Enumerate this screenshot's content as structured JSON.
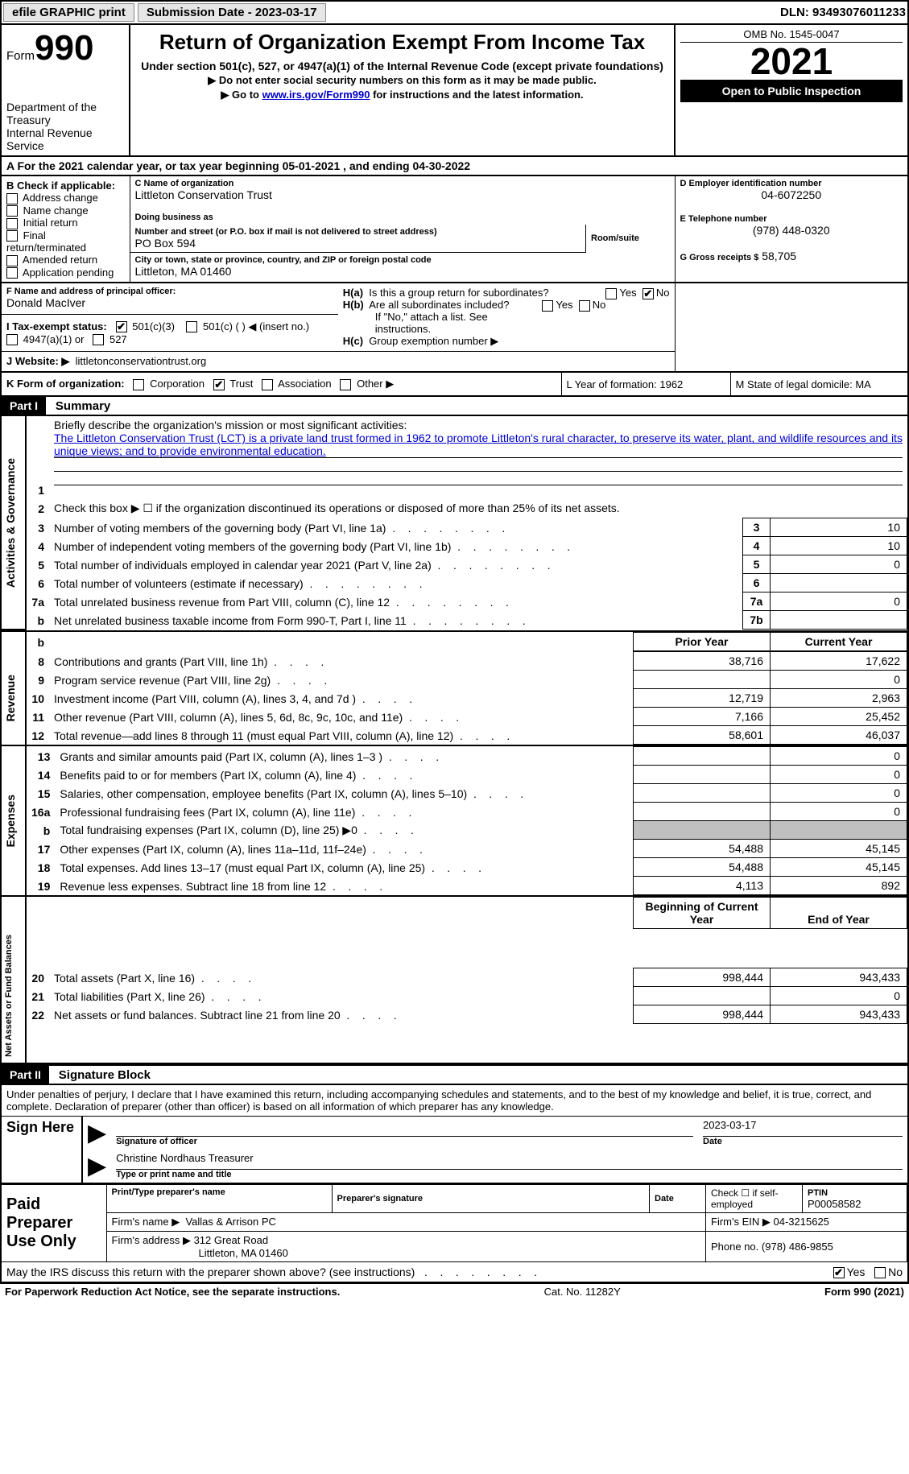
{
  "topbar": {
    "efile": "efile GRAPHIC print",
    "submission": "Submission Date - 2023-03-17",
    "dln": "DLN: 93493076011233"
  },
  "header": {
    "form_word": "Form",
    "form_num": "990",
    "dept": "Department of the Treasury",
    "irs": "Internal Revenue Service",
    "title": "Return of Organization Exempt From Income Tax",
    "sub1": "Under section 501(c), 527, or 4947(a)(1) of the Internal Revenue Code (except private foundations)",
    "sub2": "▶ Do not enter social security numbers on this form as it may be made public.",
    "sub3_a": "▶ Go to ",
    "sub3_link": "www.irs.gov/Form990",
    "sub3_b": " for instructions and the latest information.",
    "omb": "OMB No. 1545-0047",
    "year": "2021",
    "inspection": "Open to Public Inspection"
  },
  "periodA": "A For the 2021 calendar year, or tax year beginning 05-01-2021   , and ending 04-30-2022",
  "colB": {
    "title": "B Check if applicable:",
    "items": [
      "Address change",
      "Name change",
      "Initial return",
      "Final return/terminated",
      "Amended return",
      "Application pending"
    ]
  },
  "colC": {
    "name_lbl": "C Name of organization",
    "name": "Littleton Conservation Trust",
    "dba_lbl": "Doing business as",
    "dba": "",
    "addr_lbl": "Number and street (or P.O. box if mail is not delivered to street address)",
    "room_lbl": "Room/suite",
    "addr": "PO Box 594",
    "city_lbl": "City or town, state or province, country, and ZIP or foreign postal code",
    "city": "Littleton, MA  01460",
    "F_lbl": "F Name and address of principal officer:",
    "F_val": "Donald MacIver"
  },
  "colD": {
    "ein_lbl": "D Employer identification number",
    "ein": "04-6072250",
    "tel_lbl": "E Telephone number",
    "tel": "(978) 448-0320",
    "gross_lbl": "G Gross receipts $",
    "gross": "58,705"
  },
  "rowH": {
    "a": "H(a)  Is this a group return for subordinates?",
    "b": "H(b)  Are all subordinates included?",
    "b2": "If \"No,\" attach a list. See instructions.",
    "c": "H(c)  Group exemption number ▶",
    "yes": "Yes",
    "no": "No"
  },
  "rowI": {
    "label": "I   Tax-exempt status:",
    "opts": [
      "501(c)(3)",
      "501(c) (  ) ◀ (insert no.)",
      "4947(a)(1) or",
      "527"
    ]
  },
  "rowJ": {
    "label": "J   Website: ▶",
    "val": "littletonconservationtrust.org"
  },
  "rowK": {
    "label": "K Form of organization:",
    "opts": [
      "Corporation",
      "Trust",
      "Association",
      "Other ▶"
    ],
    "L": "L Year of formation: 1962",
    "M": "M State of legal domicile: MA"
  },
  "part1": {
    "num": "Part I",
    "title": "Summary"
  },
  "summary": {
    "l1a": "Briefly describe the organization's mission or most significant activities:",
    "l1b": "The Littleton Conservation Trust (LCT) is a private land trust formed in 1962 to promote Littleton's rural character, to preserve its water, plant, and wildlife resources and its unique views; and to provide environmental education.",
    "l2": "Check this box ▶ ☐  if the organization discontinued its operations or disposed of more than 25% of its net assets.",
    "rows_gov": [
      {
        "n": "3",
        "t": "Number of voting members of the governing body (Part VI, line 1a)",
        "b": "3",
        "v": "10"
      },
      {
        "n": "4",
        "t": "Number of independent voting members of the governing body (Part VI, line 1b)",
        "b": "4",
        "v": "10"
      },
      {
        "n": "5",
        "t": "Total number of individuals employed in calendar year 2021 (Part V, line 2a)",
        "b": "5",
        "v": "0"
      },
      {
        "n": "6",
        "t": "Total number of volunteers (estimate if necessary)",
        "b": "6",
        "v": ""
      },
      {
        "n": "7a",
        "t": "Total unrelated business revenue from Part VIII, column (C), line 12",
        "b": "7a",
        "v": "0"
      },
      {
        "n": "b",
        "t": "Net unrelated business taxable income from Form 990-T, Part I, line 11",
        "b": "7b",
        "v": ""
      }
    ],
    "hdr_prior": "Prior Year",
    "hdr_curr": "Current Year",
    "rev": [
      {
        "n": "8",
        "t": "Contributions and grants (Part VIII, line 1h)",
        "p": "38,716",
        "c": "17,622"
      },
      {
        "n": "9",
        "t": "Program service revenue (Part VIII, line 2g)",
        "p": "",
        "c": "0"
      },
      {
        "n": "10",
        "t": "Investment income (Part VIII, column (A), lines 3, 4, and 7d )",
        "p": "12,719",
        "c": "2,963"
      },
      {
        "n": "11",
        "t": "Other revenue (Part VIII, column (A), lines 5, 6d, 8c, 9c, 10c, and 11e)",
        "p": "7,166",
        "c": "25,452"
      },
      {
        "n": "12",
        "t": "Total revenue—add lines 8 through 11 (must equal Part VIII, column (A), line 12)",
        "p": "58,601",
        "c": "46,037"
      }
    ],
    "exp": [
      {
        "n": "13",
        "t": "Grants and similar amounts paid (Part IX, column (A), lines 1–3 )",
        "p": "",
        "c": "0"
      },
      {
        "n": "14",
        "t": "Benefits paid to or for members (Part IX, column (A), line 4)",
        "p": "",
        "c": "0"
      },
      {
        "n": "15",
        "t": "Salaries, other compensation, employee benefits (Part IX, column (A), lines 5–10)",
        "p": "",
        "c": "0"
      },
      {
        "n": "16a",
        "t": "Professional fundraising fees (Part IX, column (A), line 11e)",
        "p": "",
        "c": "0"
      },
      {
        "n": "b",
        "t": "Total fundraising expenses (Part IX, column (D), line 25) ▶0",
        "p": "GREY",
        "c": "GREY"
      },
      {
        "n": "17",
        "t": "Other expenses (Part IX, column (A), lines 11a–11d, 11f–24e)",
        "p": "54,488",
        "c": "45,145"
      },
      {
        "n": "18",
        "t": "Total expenses. Add lines 13–17 (must equal Part IX, column (A), line 25)",
        "p": "54,488",
        "c": "45,145"
      },
      {
        "n": "19",
        "t": "Revenue less expenses. Subtract line 18 from line 12",
        "p": "4,113",
        "c": "892"
      }
    ],
    "hdr_beg": "Beginning of Current Year",
    "hdr_end": "End of Year",
    "net": [
      {
        "n": "20",
        "t": "Total assets (Part X, line 16)",
        "p": "998,444",
        "c": "943,433"
      },
      {
        "n": "21",
        "t": "Total liabilities (Part X, line 26)",
        "p": "",
        "c": "0"
      },
      {
        "n": "22",
        "t": "Net assets or fund balances. Subtract line 21 from line 20",
        "p": "998,444",
        "c": "943,433"
      }
    ]
  },
  "tabs": {
    "gov": "Activities & Governance",
    "rev": "Revenue",
    "exp": "Expenses",
    "net": "Net Assets or Fund Balances"
  },
  "part2": {
    "num": "Part II",
    "title": "Signature Block"
  },
  "sig": {
    "perjury": "Under penalties of perjury, I declare that I have examined this return, including accompanying schedules and statements, and to the best of my knowledge and belief, it is true, correct, and complete. Declaration of preparer (other than officer) is based on all information of which preparer has any knowledge.",
    "sign_here": "Sign Here",
    "sig_officer": "Signature of officer",
    "date": "Date",
    "sig_date": "2023-03-17",
    "name_title": "Christine Nordhaus Treasurer",
    "name_title_lbl": "Type or print name and title"
  },
  "prep": {
    "label": "Paid Preparer Use Only",
    "r1": {
      "a": "Print/Type preparer's name",
      "b": "Preparer's signature",
      "c": "Date",
      "d_lbl": "Check ☐ if self-employed",
      "e_lbl": "PTIN",
      "e": "P00058582"
    },
    "r2": {
      "a": "Firm's name    ▶",
      "b": "Vallas & Arrison PC",
      "c": "Firm's EIN ▶",
      "d": "04-3215625"
    },
    "r3": {
      "a": "Firm's address ▶",
      "b": "312 Great Road",
      "b2": "Littleton, MA  01460",
      "c": "Phone no.",
      "d": "(978) 486-9855"
    }
  },
  "discuss": {
    "q": "May the IRS discuss this return with the preparer shown above? (see instructions)",
    "yes": "Yes",
    "no": "No"
  },
  "footer": {
    "a": "For Paperwork Reduction Act Notice, see the separate instructions.",
    "b": "Cat. No. 11282Y",
    "c": "Form 990 (2021)"
  }
}
